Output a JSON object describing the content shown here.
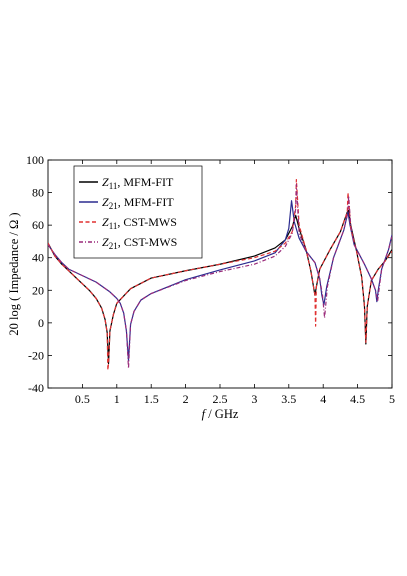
{
  "chart_data": {
    "type": "line",
    "title": "",
    "xlabel": {
      "var": "f",
      "unit": " / GHz"
    },
    "ylabel": "20 log ( Impedance / Ω )",
    "xlim": [
      0,
      5
    ],
    "ylim": [
      -40,
      100
    ],
    "x_ticks": [
      0.5,
      1,
      1.5,
      2,
      2.5,
      3,
      3.5,
      4,
      4.5,
      5
    ],
    "x_tick_labels": [
      "0.5",
      "1",
      "1.5",
      "2",
      "2.5",
      "3",
      "3.5",
      "4",
      "4.5",
      "5"
    ],
    "y_ticks": [
      -40,
      -20,
      0,
      20,
      40,
      60,
      80,
      100
    ],
    "y_tick_labels": [
      "-40",
      "-20",
      "0",
      "20",
      "40",
      "60",
      "80",
      "100"
    ],
    "grid": false,
    "legend_position": "top-left",
    "series": [
      {
        "name": "Z11, MFM-FIT",
        "sym": "Z",
        "sub": "11",
        "label": ", MFM-FIT",
        "color": "#000000",
        "dash": "solid",
        "x": [
          0.0,
          0.1,
          0.2,
          0.3,
          0.4,
          0.5,
          0.6,
          0.7,
          0.78,
          0.83,
          0.86,
          0.88,
          0.9,
          0.95,
          1.0,
          1.2,
          1.5,
          2.0,
          2.5,
          3.0,
          3.3,
          3.45,
          3.55,
          3.6,
          3.65,
          3.75,
          3.82,
          3.86,
          3.88,
          3.9,
          3.95,
          4.1,
          4.25,
          4.35,
          4.37,
          4.4,
          4.48,
          4.56,
          4.6,
          4.62,
          4.64,
          4.7,
          4.8,
          4.9,
          5.0
        ],
        "y": [
          49,
          41,
          36,
          32,
          28,
          24,
          20,
          15,
          9,
          2,
          -6,
          -25,
          -5,
          5,
          12,
          21,
          27.5,
          32,
          36,
          41,
          46,
          51,
          59,
          66,
          58,
          45,
          32,
          22,
          17,
          22,
          33,
          45,
          56,
          68,
          69,
          60,
          45,
          28,
          10,
          -13,
          10,
          26,
          33,
          38,
          45
        ]
      },
      {
        "name": "Z21, MFM-FIT",
        "sym": "Z",
        "sub": "21",
        "label": ", MFM-FIT",
        "color": "#2b2b8f",
        "dash": "solid",
        "x": [
          0.0,
          0.1,
          0.2,
          0.3,
          0.4,
          0.5,
          0.6,
          0.7,
          0.8,
          0.9,
          1.0,
          1.05,
          1.1,
          1.14,
          1.17,
          1.2,
          1.25,
          1.35,
          1.5,
          2.0,
          2.5,
          3.0,
          3.3,
          3.45,
          3.5,
          3.54,
          3.58,
          3.65,
          3.75,
          3.88,
          3.95,
          3.98,
          4.01,
          4.05,
          4.15,
          4.3,
          4.36,
          4.39,
          4.45,
          4.6,
          4.7,
          4.76,
          4.78,
          4.8,
          4.85,
          4.95,
          5.0
        ],
        "y": [
          48,
          42,
          37,
          33,
          31,
          29,
          27,
          25,
          22,
          19,
          15,
          12,
          6,
          -5,
          -23,
          -1,
          7,
          14,
          18,
          26.5,
          32.5,
          38,
          43,
          51,
          58,
          75,
          62,
          52,
          44,
          37,
          27,
          17,
          11,
          22,
          40,
          57,
          68,
          60,
          48,
          36,
          27,
          20,
          13,
          20,
          33,
          45,
          54
        ]
      },
      {
        "name": "Z11, CST-MWS",
        "sym": "Z",
        "sub": "11",
        "label": ", CST-MWS",
        "color": "#e03030",
        "dash": "dashed",
        "x": [
          0.0,
          0.1,
          0.2,
          0.3,
          0.4,
          0.5,
          0.6,
          0.7,
          0.78,
          0.83,
          0.86,
          0.87,
          0.88,
          0.9,
          0.95,
          1.0,
          1.2,
          1.5,
          2.0,
          2.5,
          3.0,
          3.3,
          3.45,
          3.55,
          3.6,
          3.61,
          3.65,
          3.75,
          3.82,
          3.86,
          3.88,
          3.89,
          3.9,
          3.95,
          4.1,
          4.25,
          4.35,
          4.36,
          4.38,
          4.4,
          4.48,
          4.56,
          4.6,
          4.62,
          4.64,
          4.7,
          4.8,
          4.9,
          5.0
        ],
        "y": [
          49,
          41,
          36,
          32,
          28,
          24,
          20,
          15,
          9,
          2,
          -6,
          -29,
          -25,
          -5,
          5,
          12,
          21,
          27.5,
          32,
          36,
          40,
          44,
          49,
          56,
          72,
          88,
          60,
          45,
          32,
          22,
          17,
          -2,
          22,
          33,
          45,
          56,
          68,
          80,
          70,
          58,
          45,
          28,
          10,
          -12,
          10,
          26,
          33,
          38,
          44
        ]
      },
      {
        "name": "Z21, CST-MWS",
        "sym": "Z",
        "sub": "21",
        "label": ", CST-MWS",
        "color": "#9a2a7a",
        "dash": "dashdot",
        "x": [
          0.0,
          0.1,
          0.2,
          0.3,
          0.4,
          0.5,
          0.6,
          0.7,
          0.8,
          0.9,
          1.0,
          1.05,
          1.1,
          1.14,
          1.17,
          1.2,
          1.25,
          1.35,
          1.5,
          2.0,
          2.5,
          3.0,
          3.3,
          3.45,
          3.55,
          3.6,
          3.61,
          3.65,
          3.75,
          3.88,
          3.95,
          3.99,
          4.02,
          4.06,
          4.15,
          4.3,
          4.36,
          4.37,
          4.4,
          4.45,
          4.6,
          4.7,
          4.76,
          4.79,
          4.81,
          4.85,
          4.95,
          5.0
        ],
        "y": [
          48,
          42,
          37,
          33,
          31,
          29,
          27,
          25,
          22,
          19,
          15,
          12,
          6,
          -5,
          -28,
          -1,
          7,
          14,
          18,
          26,
          31.5,
          36,
          41,
          47,
          55,
          70,
          85,
          55,
          44,
          37,
          27,
          17,
          3,
          22,
          40,
          57,
          68,
          78,
          60,
          48,
          36,
          27,
          20,
          13,
          20,
          33,
          45,
          53
        ]
      }
    ]
  }
}
